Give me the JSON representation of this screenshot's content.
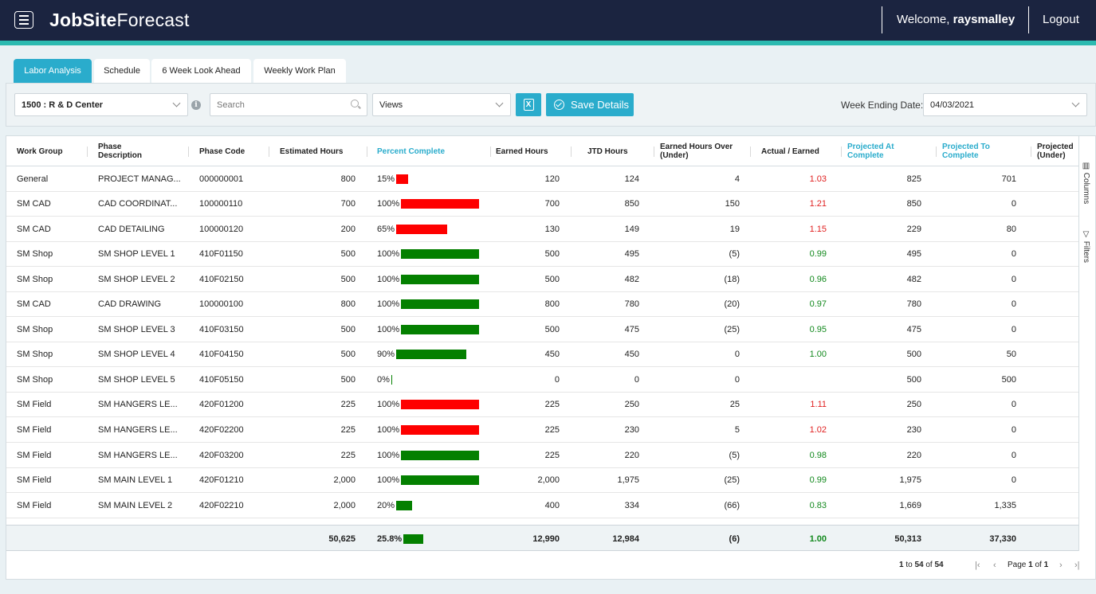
{
  "header": {
    "logo_bold": "JobSite",
    "logo_light": "Forecast",
    "welcome_prefix": "Welcome,",
    "username": "raysmalley",
    "logout": "Logout"
  },
  "tabs": [
    "Labor Analysis",
    "Schedule",
    "6 Week Look Ahead",
    "Weekly Work Plan"
  ],
  "toolbar": {
    "project": "1500 : R & D Center",
    "search_placeholder": "Search",
    "views": "Views",
    "excel_icon": "X",
    "save_label": "Save Details",
    "week_label": "Week Ending Date:",
    "week_value": "04/03/2021"
  },
  "columns": {
    "work_group": "Work Group",
    "phase_desc": "Phase Description",
    "phase_code": "Phase Code",
    "estimated": "Estimated Hours",
    "percent": "Percent Complete",
    "earned": "Earned Hours",
    "jtd": "JTD Hours",
    "over_under": "Earned Hours Over (Under)",
    "actual_earned": "Actual / Earned",
    "proj_at": "Projected At Complete",
    "proj_to": "Projected To Complete",
    "projected_under": "Projected (Under)"
  },
  "colors": {
    "bar_red": "#fe0000",
    "bar_green": "#048000",
    "accent": "#2aaccc",
    "navy": "#1b2440"
  },
  "rows": [
    {
      "work_group": "General",
      "phase_desc": "PROJECT MANAG...",
      "phase_code": "000000001",
      "estimated": "800",
      "percent_text": "15%",
      "percent": 15,
      "bar": "red",
      "earned": "120",
      "jtd": "124",
      "over_under": "4",
      "actual_earned": "1.03",
      "ae_color": "red",
      "proj_at": "825",
      "proj_to": "701"
    },
    {
      "work_group": "SM CAD",
      "phase_desc": "CAD COORDINAT...",
      "phase_code": "100000110",
      "estimated": "700",
      "percent_text": "100%",
      "percent": 100,
      "bar": "red",
      "earned": "700",
      "jtd": "850",
      "over_under": "150",
      "actual_earned": "1.21",
      "ae_color": "red",
      "proj_at": "850",
      "proj_to": "0"
    },
    {
      "work_group": "SM CAD",
      "phase_desc": "CAD DETAILING",
      "phase_code": "100000120",
      "estimated": "200",
      "percent_text": "65%",
      "percent": 65,
      "bar": "red",
      "earned": "130",
      "jtd": "149",
      "over_under": "19",
      "actual_earned": "1.15",
      "ae_color": "red",
      "proj_at": "229",
      "proj_to": "80"
    },
    {
      "work_group": "SM Shop",
      "phase_desc": "SM SHOP LEVEL 1",
      "phase_code": "410F01150",
      "estimated": "500",
      "percent_text": "100%",
      "percent": 100,
      "bar": "green",
      "earned": "500",
      "jtd": "495",
      "over_under": "(5)",
      "actual_earned": "0.99",
      "ae_color": "green",
      "proj_at": "495",
      "proj_to": "0"
    },
    {
      "work_group": "SM Shop",
      "phase_desc": "SM SHOP LEVEL 2",
      "phase_code": "410F02150",
      "estimated": "500",
      "percent_text": "100%",
      "percent": 100,
      "bar": "green",
      "earned": "500",
      "jtd": "482",
      "over_under": "(18)",
      "actual_earned": "0.96",
      "ae_color": "green",
      "proj_at": "482",
      "proj_to": "0"
    },
    {
      "work_group": "SM CAD",
      "phase_desc": "CAD DRAWING",
      "phase_code": "100000100",
      "estimated": "800",
      "percent_text": "100%",
      "percent": 100,
      "bar": "green",
      "earned": "800",
      "jtd": "780",
      "over_under": "(20)",
      "actual_earned": "0.97",
      "ae_color": "green",
      "proj_at": "780",
      "proj_to": "0"
    },
    {
      "work_group": "SM Shop",
      "phase_desc": "SM SHOP LEVEL 3",
      "phase_code": "410F03150",
      "estimated": "500",
      "percent_text": "100%",
      "percent": 100,
      "bar": "green",
      "earned": "500",
      "jtd": "475",
      "over_under": "(25)",
      "actual_earned": "0.95",
      "ae_color": "green",
      "proj_at": "475",
      "proj_to": "0"
    },
    {
      "work_group": "SM Shop",
      "phase_desc": "SM SHOP LEVEL 4",
      "phase_code": "410F04150",
      "estimated": "500",
      "percent_text": "90%",
      "percent": 90,
      "bar": "green",
      "earned": "450",
      "jtd": "450",
      "over_under": "0",
      "actual_earned": "1.00",
      "ae_color": "green",
      "proj_at": "500",
      "proj_to": "50"
    },
    {
      "work_group": "SM Shop",
      "phase_desc": "SM SHOP LEVEL 5",
      "phase_code": "410F05150",
      "estimated": "500",
      "percent_text": "0%",
      "percent": 0,
      "bar": "green",
      "earned": "0",
      "jtd": "0",
      "over_under": "0",
      "actual_earned": "",
      "ae_color": "green",
      "proj_at": "500",
      "proj_to": "500"
    },
    {
      "work_group": "SM Field",
      "phase_desc": "SM HANGERS LE...",
      "phase_code": "420F01200",
      "estimated": "225",
      "percent_text": "100%",
      "percent": 100,
      "bar": "red",
      "earned": "225",
      "jtd": "250",
      "over_under": "25",
      "actual_earned": "1.11",
      "ae_color": "red",
      "proj_at": "250",
      "proj_to": "0"
    },
    {
      "work_group": "SM Field",
      "phase_desc": "SM HANGERS LE...",
      "phase_code": "420F02200",
      "estimated": "225",
      "percent_text": "100%",
      "percent": 100,
      "bar": "red",
      "earned": "225",
      "jtd": "230",
      "over_under": "5",
      "actual_earned": "1.02",
      "ae_color": "red",
      "proj_at": "230",
      "proj_to": "0"
    },
    {
      "work_group": "SM Field",
      "phase_desc": "SM HANGERS LE...",
      "phase_code": "420F03200",
      "estimated": "225",
      "percent_text": "100%",
      "percent": 100,
      "bar": "green",
      "earned": "225",
      "jtd": "220",
      "over_under": "(5)",
      "actual_earned": "0.98",
      "ae_color": "green",
      "proj_at": "220",
      "proj_to": "0"
    },
    {
      "work_group": "SM Field",
      "phase_desc": "SM MAIN LEVEL 1",
      "phase_code": "420F01210",
      "estimated": "2,000",
      "percent_text": "100%",
      "percent": 100,
      "bar": "green",
      "earned": "2,000",
      "jtd": "1,975",
      "over_under": "(25)",
      "actual_earned": "0.99",
      "ae_color": "green",
      "proj_at": "1,975",
      "proj_to": "0"
    },
    {
      "work_group": "SM Field",
      "phase_desc": "SM MAIN LEVEL 2",
      "phase_code": "420F02210",
      "estimated": "2,000",
      "percent_text": "20%",
      "percent": 20,
      "bar": "green",
      "earned": "400",
      "jtd": "334",
      "over_under": "(66)",
      "actual_earned": "0.83",
      "ae_color": "green",
      "proj_at": "1,669",
      "proj_to": "1,335"
    }
  ],
  "totals": {
    "estimated": "50,625",
    "percent_text": "25.8%",
    "percent": 25.8,
    "earned": "12,990",
    "jtd": "12,984",
    "over_under": "(6)",
    "actual_earned": "1.00",
    "proj_at": "50,313",
    "proj_to": "37,330"
  },
  "side": {
    "columns": "Columns",
    "filters": "Filters"
  },
  "pager": {
    "from": "1",
    "to_word": "to",
    "to": "54",
    "of_word": "of",
    "total": "54",
    "page_word": "Page",
    "page": "1",
    "pages_of": "of",
    "pages": "1"
  }
}
